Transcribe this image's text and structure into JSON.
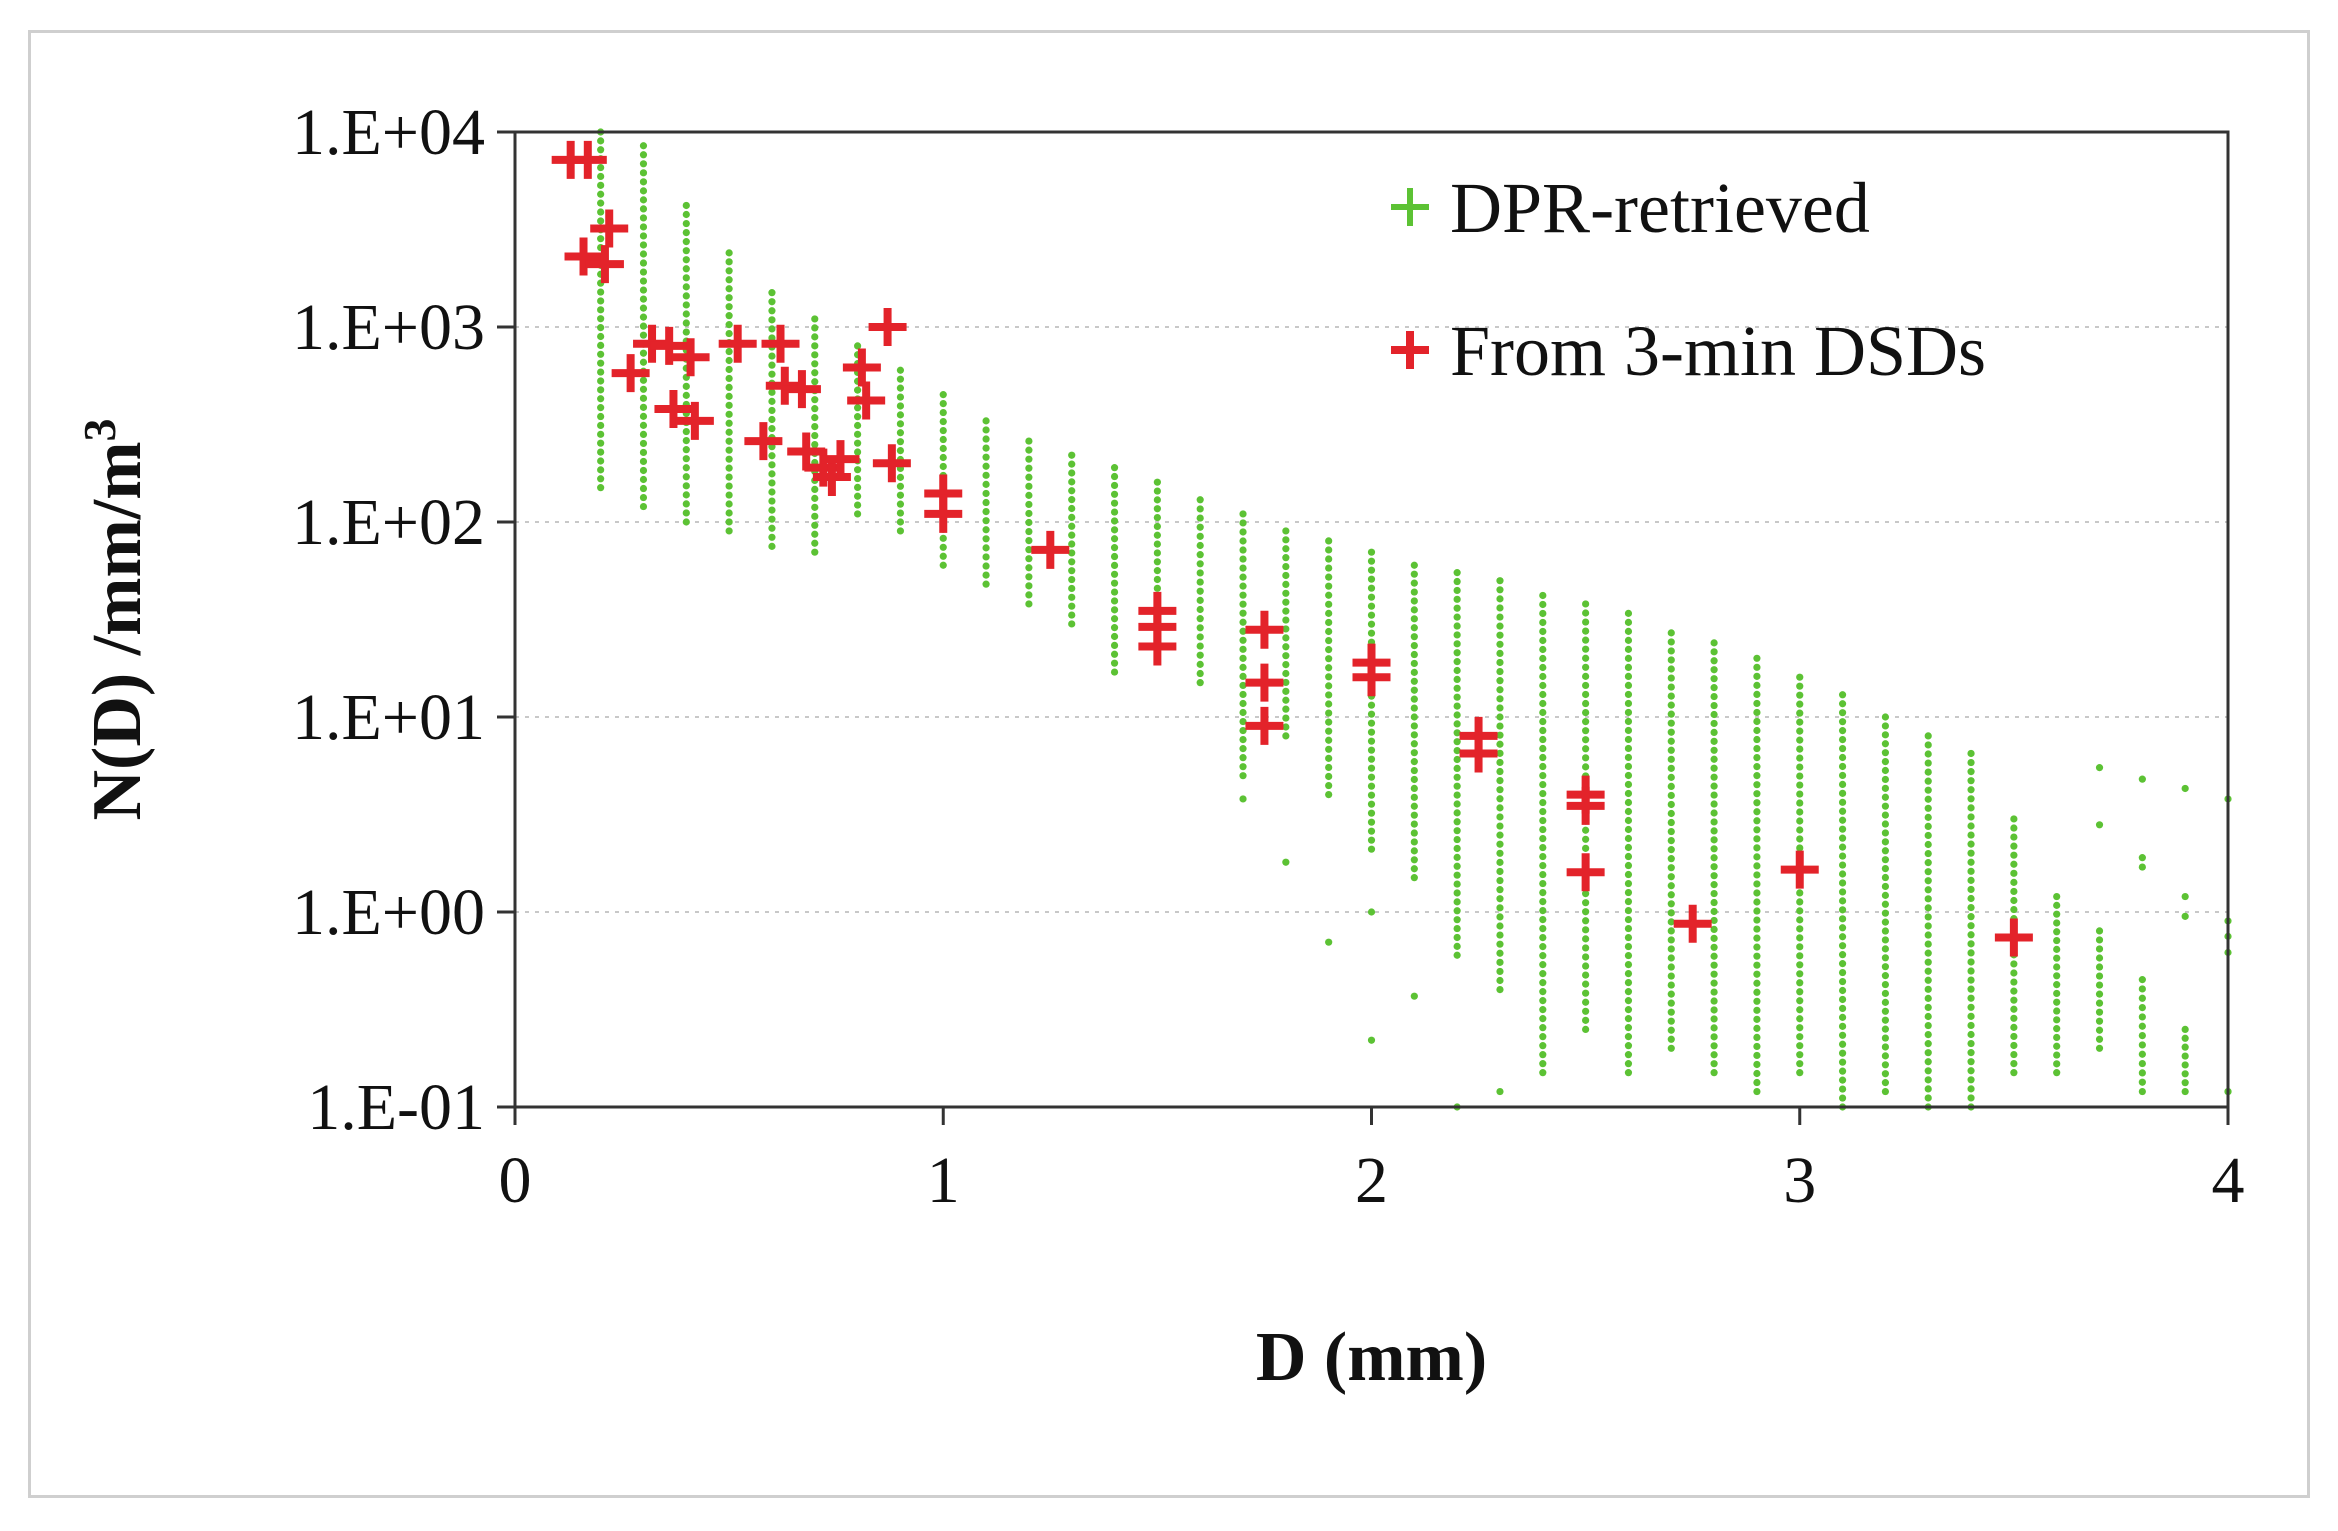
{
  "chart_data": {
    "type": "scatter",
    "xlabel": "D (mm)",
    "ylabel": "N(D) /mm/m",
    "ylabel_superscript": "3",
    "y_scale": "log",
    "xlim": [
      0,
      4
    ],
    "ylim": [
      0.1,
      10000
    ],
    "x_ticks": [
      0,
      1,
      2,
      3,
      4
    ],
    "x_tick_labels": [
      "0",
      "1",
      "2",
      "3",
      "4"
    ],
    "y_ticks": [
      0.1,
      1,
      10,
      100,
      1000,
      10000
    ],
    "y_tick_labels": [
      "1.E-01",
      "1.E+00",
      "1.E+01",
      "1.E+02",
      "1.E+03",
      "1.E+04"
    ],
    "grid": "horizontal dotted",
    "legend_position": "top-right",
    "series": [
      {
        "name": "DPR-retrieved",
        "marker": "small-plus",
        "color": "#5cc234",
        "columns": [
          {
            "x": 0.2,
            "ymin": 150,
            "ymax": 10000,
            "outliers": []
          },
          {
            "x": 0.3,
            "ymin": 120,
            "ymax": 8500,
            "outliers": []
          },
          {
            "x": 0.4,
            "ymin": 100,
            "ymax": 4200,
            "outliers": []
          },
          {
            "x": 0.5,
            "ymin": 90,
            "ymax": 2400,
            "outliers": []
          },
          {
            "x": 0.6,
            "ymin": 75,
            "ymax": 1500,
            "outliers": []
          },
          {
            "x": 0.7,
            "ymin": 70,
            "ymax": 1100,
            "outliers": []
          },
          {
            "x": 0.8,
            "ymin": 110,
            "ymax": 800,
            "outliers": []
          },
          {
            "x": 0.9,
            "ymin": 90,
            "ymax": 600,
            "outliers": []
          },
          {
            "x": 1.0,
            "ymin": 60,
            "ymax": 450,
            "outliers": []
          },
          {
            "x": 1.1,
            "ymin": 48,
            "ymax": 330,
            "outliers": []
          },
          {
            "x": 1.2,
            "ymin": 38,
            "ymax": 260,
            "outliers": []
          },
          {
            "x": 1.3,
            "ymin": 30,
            "ymax": 220,
            "outliers": []
          },
          {
            "x": 1.4,
            "ymin": 17,
            "ymax": 190,
            "outliers": []
          },
          {
            "x": 1.5,
            "ymin": 22,
            "ymax": 160,
            "outliers": []
          },
          {
            "x": 1.6,
            "ymin": 15,
            "ymax": 130,
            "outliers": []
          },
          {
            "x": 1.7,
            "ymin": 5,
            "ymax": 110,
            "outliers": [
              3.8
            ]
          },
          {
            "x": 1.8,
            "ymin": 8,
            "ymax": 90,
            "outliers": [
              1.8
            ]
          },
          {
            "x": 1.9,
            "ymin": 4,
            "ymax": 80,
            "outliers": [
              0.7
            ]
          },
          {
            "x": 2.0,
            "ymin": 2.1,
            "ymax": 70,
            "outliers": [
              1.0,
              0.22
            ]
          },
          {
            "x": 2.1,
            "ymin": 1.5,
            "ymax": 60,
            "outliers": [
              0.37
            ]
          },
          {
            "x": 2.2,
            "ymin": 0.6,
            "ymax": 55,
            "outliers": [
              0.1
            ]
          },
          {
            "x": 2.3,
            "ymin": 0.4,
            "ymax": 50,
            "outliers": [
              0.12
            ]
          },
          {
            "x": 2.4,
            "ymin": 0.15,
            "ymax": 42,
            "outliers": []
          },
          {
            "x": 2.5,
            "ymin": 0.25,
            "ymax": 38,
            "outliers": []
          },
          {
            "x": 2.6,
            "ymin": 0.15,
            "ymax": 34,
            "outliers": []
          },
          {
            "x": 2.7,
            "ymin": 0.2,
            "ymax": 27,
            "outliers": []
          },
          {
            "x": 2.8,
            "ymin": 0.15,
            "ymax": 24,
            "outliers": []
          },
          {
            "x": 2.9,
            "ymin": 0.12,
            "ymax": 20,
            "outliers": []
          },
          {
            "x": 3.0,
            "ymin": 0.15,
            "ymax": 16,
            "outliers": []
          },
          {
            "x": 3.1,
            "ymin": 0.1,
            "ymax": 13,
            "outliers": []
          },
          {
            "x": 3.2,
            "ymin": 0.12,
            "ymax": 10,
            "outliers": []
          },
          {
            "x": 3.3,
            "ymin": 0.1,
            "ymax": 8,
            "outliers": []
          },
          {
            "x": 3.4,
            "ymin": 0.1,
            "ymax": 6.5,
            "outliers": []
          },
          {
            "x": 3.5,
            "ymin": 0.15,
            "ymax": 3,
            "outliers": []
          },
          {
            "x": 3.6,
            "ymin": 0.15,
            "ymax": 1.2,
            "outliers": []
          },
          {
            "x": 3.7,
            "ymin": 0.2,
            "ymax": 0.8,
            "outliers": [
              5.5,
              2.8
            ]
          },
          {
            "x": 3.8,
            "ymin": 0.12,
            "ymax": 0.45,
            "outliers": [
              4.8,
              1.9,
              1.7
            ]
          },
          {
            "x": 3.9,
            "ymin": 0.12,
            "ymax": 0.25,
            "outliers": [
              4.3,
              1.2,
              0.95
            ]
          },
          {
            "x": 4.0,
            "ymin": 0.12,
            "ymax": 0.12,
            "outliers": [
              3.8,
              0.9,
              0.75,
              0.62
            ]
          }
        ]
      },
      {
        "name": "From 3-min DSDs",
        "marker": "plus",
        "color": "#e3232a",
        "points": [
          {
            "x": 0.13,
            "y": 7200
          },
          {
            "x": 0.17,
            "y": 7200
          },
          {
            "x": 0.16,
            "y": 2300
          },
          {
            "x": 0.21,
            "y": 2100
          },
          {
            "x": 0.22,
            "y": 3200
          },
          {
            "x": 0.27,
            "y": 580
          },
          {
            "x": 0.32,
            "y": 820
          },
          {
            "x": 0.36,
            "y": 800
          },
          {
            "x": 0.37,
            "y": 380
          },
          {
            "x": 0.41,
            "y": 700
          },
          {
            "x": 0.42,
            "y": 330
          },
          {
            "x": 0.52,
            "y": 820
          },
          {
            "x": 0.58,
            "y": 260
          },
          {
            "x": 0.62,
            "y": 820
          },
          {
            "x": 0.63,
            "y": 500
          },
          {
            "x": 0.67,
            "y": 480
          },
          {
            "x": 0.68,
            "y": 230
          },
          {
            "x": 0.72,
            "y": 190
          },
          {
            "x": 0.74,
            "y": 170
          },
          {
            "x": 0.76,
            "y": 210
          },
          {
            "x": 0.81,
            "y": 620
          },
          {
            "x": 0.82,
            "y": 420
          },
          {
            "x": 0.87,
            "y": 1000
          },
          {
            "x": 0.88,
            "y": 200
          },
          {
            "x": 1.0,
            "y": 140
          },
          {
            "x": 1.0,
            "y": 110
          },
          {
            "x": 1.25,
            "y": 72
          },
          {
            "x": 1.5,
            "y": 35
          },
          {
            "x": 1.5,
            "y": 29
          },
          {
            "x": 1.5,
            "y": 23
          },
          {
            "x": 1.75,
            "y": 28
          },
          {
            "x": 1.75,
            "y": 15
          },
          {
            "x": 1.75,
            "y": 9
          },
          {
            "x": 2.0,
            "y": 19
          },
          {
            "x": 2.0,
            "y": 16
          },
          {
            "x": 2.25,
            "y": 8
          },
          {
            "x": 2.25,
            "y": 6.5
          },
          {
            "x": 2.5,
            "y": 4
          },
          {
            "x": 2.5,
            "y": 3.5
          },
          {
            "x": 2.5,
            "y": 1.6
          },
          {
            "x": 2.75,
            "y": 0.87
          },
          {
            "x": 3.0,
            "y": 1.65
          },
          {
            "x": 3.5,
            "y": 0.74
          }
        ]
      }
    ]
  }
}
